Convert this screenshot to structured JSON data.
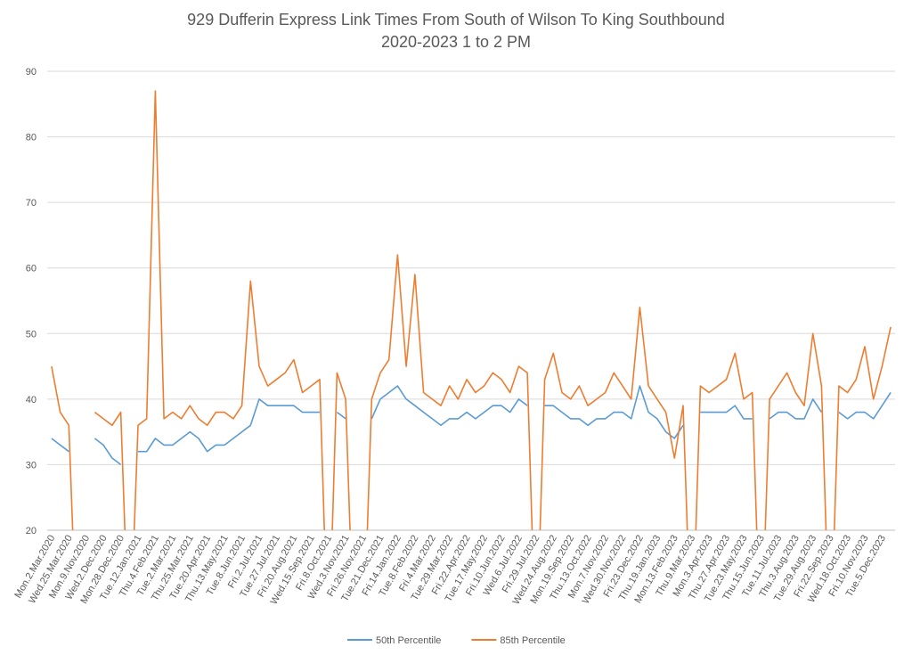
{
  "chart_data": {
    "type": "line",
    "title": "929 Dufferin Express Link Times From South of Wilson To King Southbound",
    "subtitle": "2020-2023 1 to 2 PM",
    "categories": [
      "Mon.2.Mar.2020",
      null,
      "Wed.25.Mar.2020",
      null,
      "Mon.9.Nov.2020",
      null,
      "Wed.2.Dec.2020",
      null,
      "Mon.28.Dec.2020",
      null,
      "Tue.12.Jan.2021",
      null,
      "Thu.4.Feb.2021",
      null,
      "Tue.2.Mar.2021",
      null,
      "Thu.25.Mar.2021",
      null,
      "Tue.20.Apr.2021",
      null,
      "Thu.13.May.2021",
      null,
      "Tue.8.Jun.2021",
      null,
      "Fri.2.Jul.2021",
      null,
      "Tue.27.Jul.2021",
      null,
      "Fri.20.Aug.2021",
      null,
      "Wed.15.Sep.2021",
      null,
      "Fri.8.Oct.2021",
      null,
      "Wed.3.Nov.2021",
      null,
      "Fri.26.Nov.2021",
      null,
      "Tue.21.Dec.2021",
      null,
      "Fri.14.Jan.2022",
      null,
      "Tue.8.Feb.2022",
      null,
      "Fri.4.Mar.2022",
      null,
      "Tue.29.Mar.2022",
      null,
      "Fri.22.Apr.2022",
      null,
      "Tue.17.May.2022",
      null,
      "Fri.10.Jun.2022",
      null,
      "Wed.6.Jul.2022",
      null,
      "Fri.29.Jul.2022",
      null,
      "Wed.24.Aug.2022",
      null,
      "Mon.19.Sep.2022",
      null,
      "Thu.13.Oct.2022",
      null,
      "Mon.7.Nov.2022",
      null,
      "Wed.30.Nov.2022",
      null,
      "Fri.23.Dec.2022",
      null,
      "Thu.19.Jan.2023",
      null,
      "Mon.13.Feb.2023",
      null,
      "Thu.9.Mar.2023",
      null,
      "Mon.3.Apr.2023",
      null,
      "Thu.27.Apr.2023",
      null,
      "Tue.23.May.2023",
      null,
      "Thu.15.Jun.2023",
      null,
      "Tue.11.Jul.2023",
      null,
      "Thu.3.Aug.2023",
      null,
      "Tue.29.Aug.2023",
      null,
      "Fri.22.Sep.2023",
      null,
      "Wed.18.Oct.2023",
      null,
      "Fri.10.Nov.2023",
      null,
      "Tue.5.Dec.2023",
      null
    ],
    "series": [
      {
        "name": "50th Percentile",
        "color": "#5b9bd5",
        "values": [
          34,
          33,
          32,
          null,
          null,
          34,
          33,
          31,
          30,
          null,
          32,
          32,
          34,
          33,
          33,
          34,
          35,
          34,
          32,
          33,
          33,
          34,
          35,
          36,
          40,
          39,
          39,
          39,
          39,
          38,
          38,
          38,
          null,
          38,
          37,
          null,
          null,
          37,
          40,
          41,
          42,
          40,
          39,
          38,
          37,
          36,
          37,
          37,
          38,
          37,
          38,
          39,
          39,
          38,
          40,
          39,
          null,
          39,
          39,
          38,
          37,
          37,
          36,
          37,
          37,
          38,
          38,
          37,
          42,
          38,
          37,
          35,
          34,
          36,
          null,
          38,
          38,
          38,
          38,
          39,
          37,
          37,
          null,
          37,
          38,
          38,
          37,
          37,
          40,
          38,
          null,
          38,
          37,
          38,
          38,
          37,
          39,
          41
        ]
      },
      {
        "name": "85th Percentile",
        "color": "#ed7d31",
        "values": [
          45,
          38,
          36,
          0,
          null,
          38,
          37,
          36,
          38,
          0,
          36,
          37,
          87,
          37,
          38,
          37,
          39,
          37,
          36,
          38,
          38,
          37,
          39,
          58,
          45,
          42,
          43,
          44,
          46,
          41,
          42,
          43,
          0,
          44,
          40,
          0,
          0,
          40,
          44,
          46,
          62,
          45,
          59,
          41,
          40,
          39,
          42,
          40,
          43,
          41,
          42,
          44,
          43,
          41,
          45,
          44,
          0,
          43,
          47,
          41,
          40,
          42,
          39,
          40,
          41,
          44,
          42,
          40,
          54,
          42,
          40,
          38,
          31,
          39,
          0,
          42,
          41,
          42,
          43,
          47,
          40,
          41,
          0,
          40,
          42,
          44,
          41,
          39,
          50,
          42,
          0,
          42,
          41,
          43,
          48,
          40,
          45,
          51
        ]
      }
    ],
    "ylim": [
      20,
      90
    ],
    "yticks": [
      20,
      30,
      40,
      50,
      60,
      70,
      80,
      90
    ],
    "grid": true,
    "legend": "bottom"
  }
}
